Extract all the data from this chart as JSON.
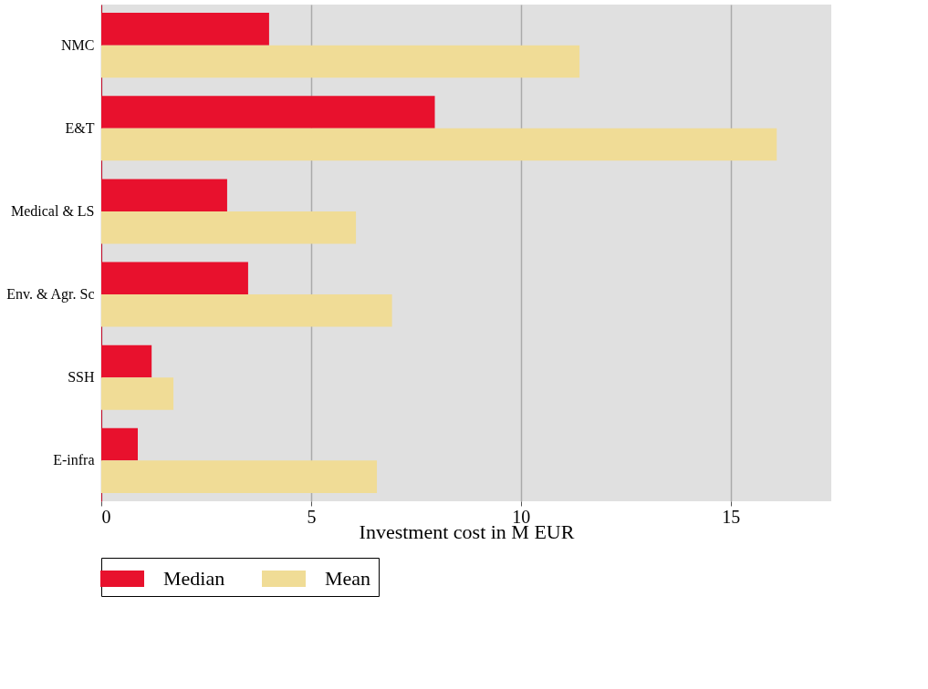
{
  "chart_data": {
    "type": "bar",
    "orientation": "horizontal",
    "xlabel": "Investment cost in M EUR",
    "categories": [
      "NMC",
      "E&T",
      "Medical & LS",
      "Env. & Agr. Sc",
      "SSH",
      "E-infra"
    ],
    "series": [
      {
        "name": "Median",
        "color": "#e8112d",
        "values": [
          4.0,
          7.95,
          3.0,
          3.5,
          1.2,
          0.87
        ]
      },
      {
        "name": "Mean",
        "color": "#f0dc96",
        "values": [
          11.4,
          16.1,
          6.07,
          6.93,
          1.72,
          6.57
        ]
      }
    ],
    "xlim": [
      0,
      17.4
    ],
    "xticks": [
      0,
      5,
      10,
      15
    ],
    "grid": "x",
    "legend": "bottom"
  }
}
